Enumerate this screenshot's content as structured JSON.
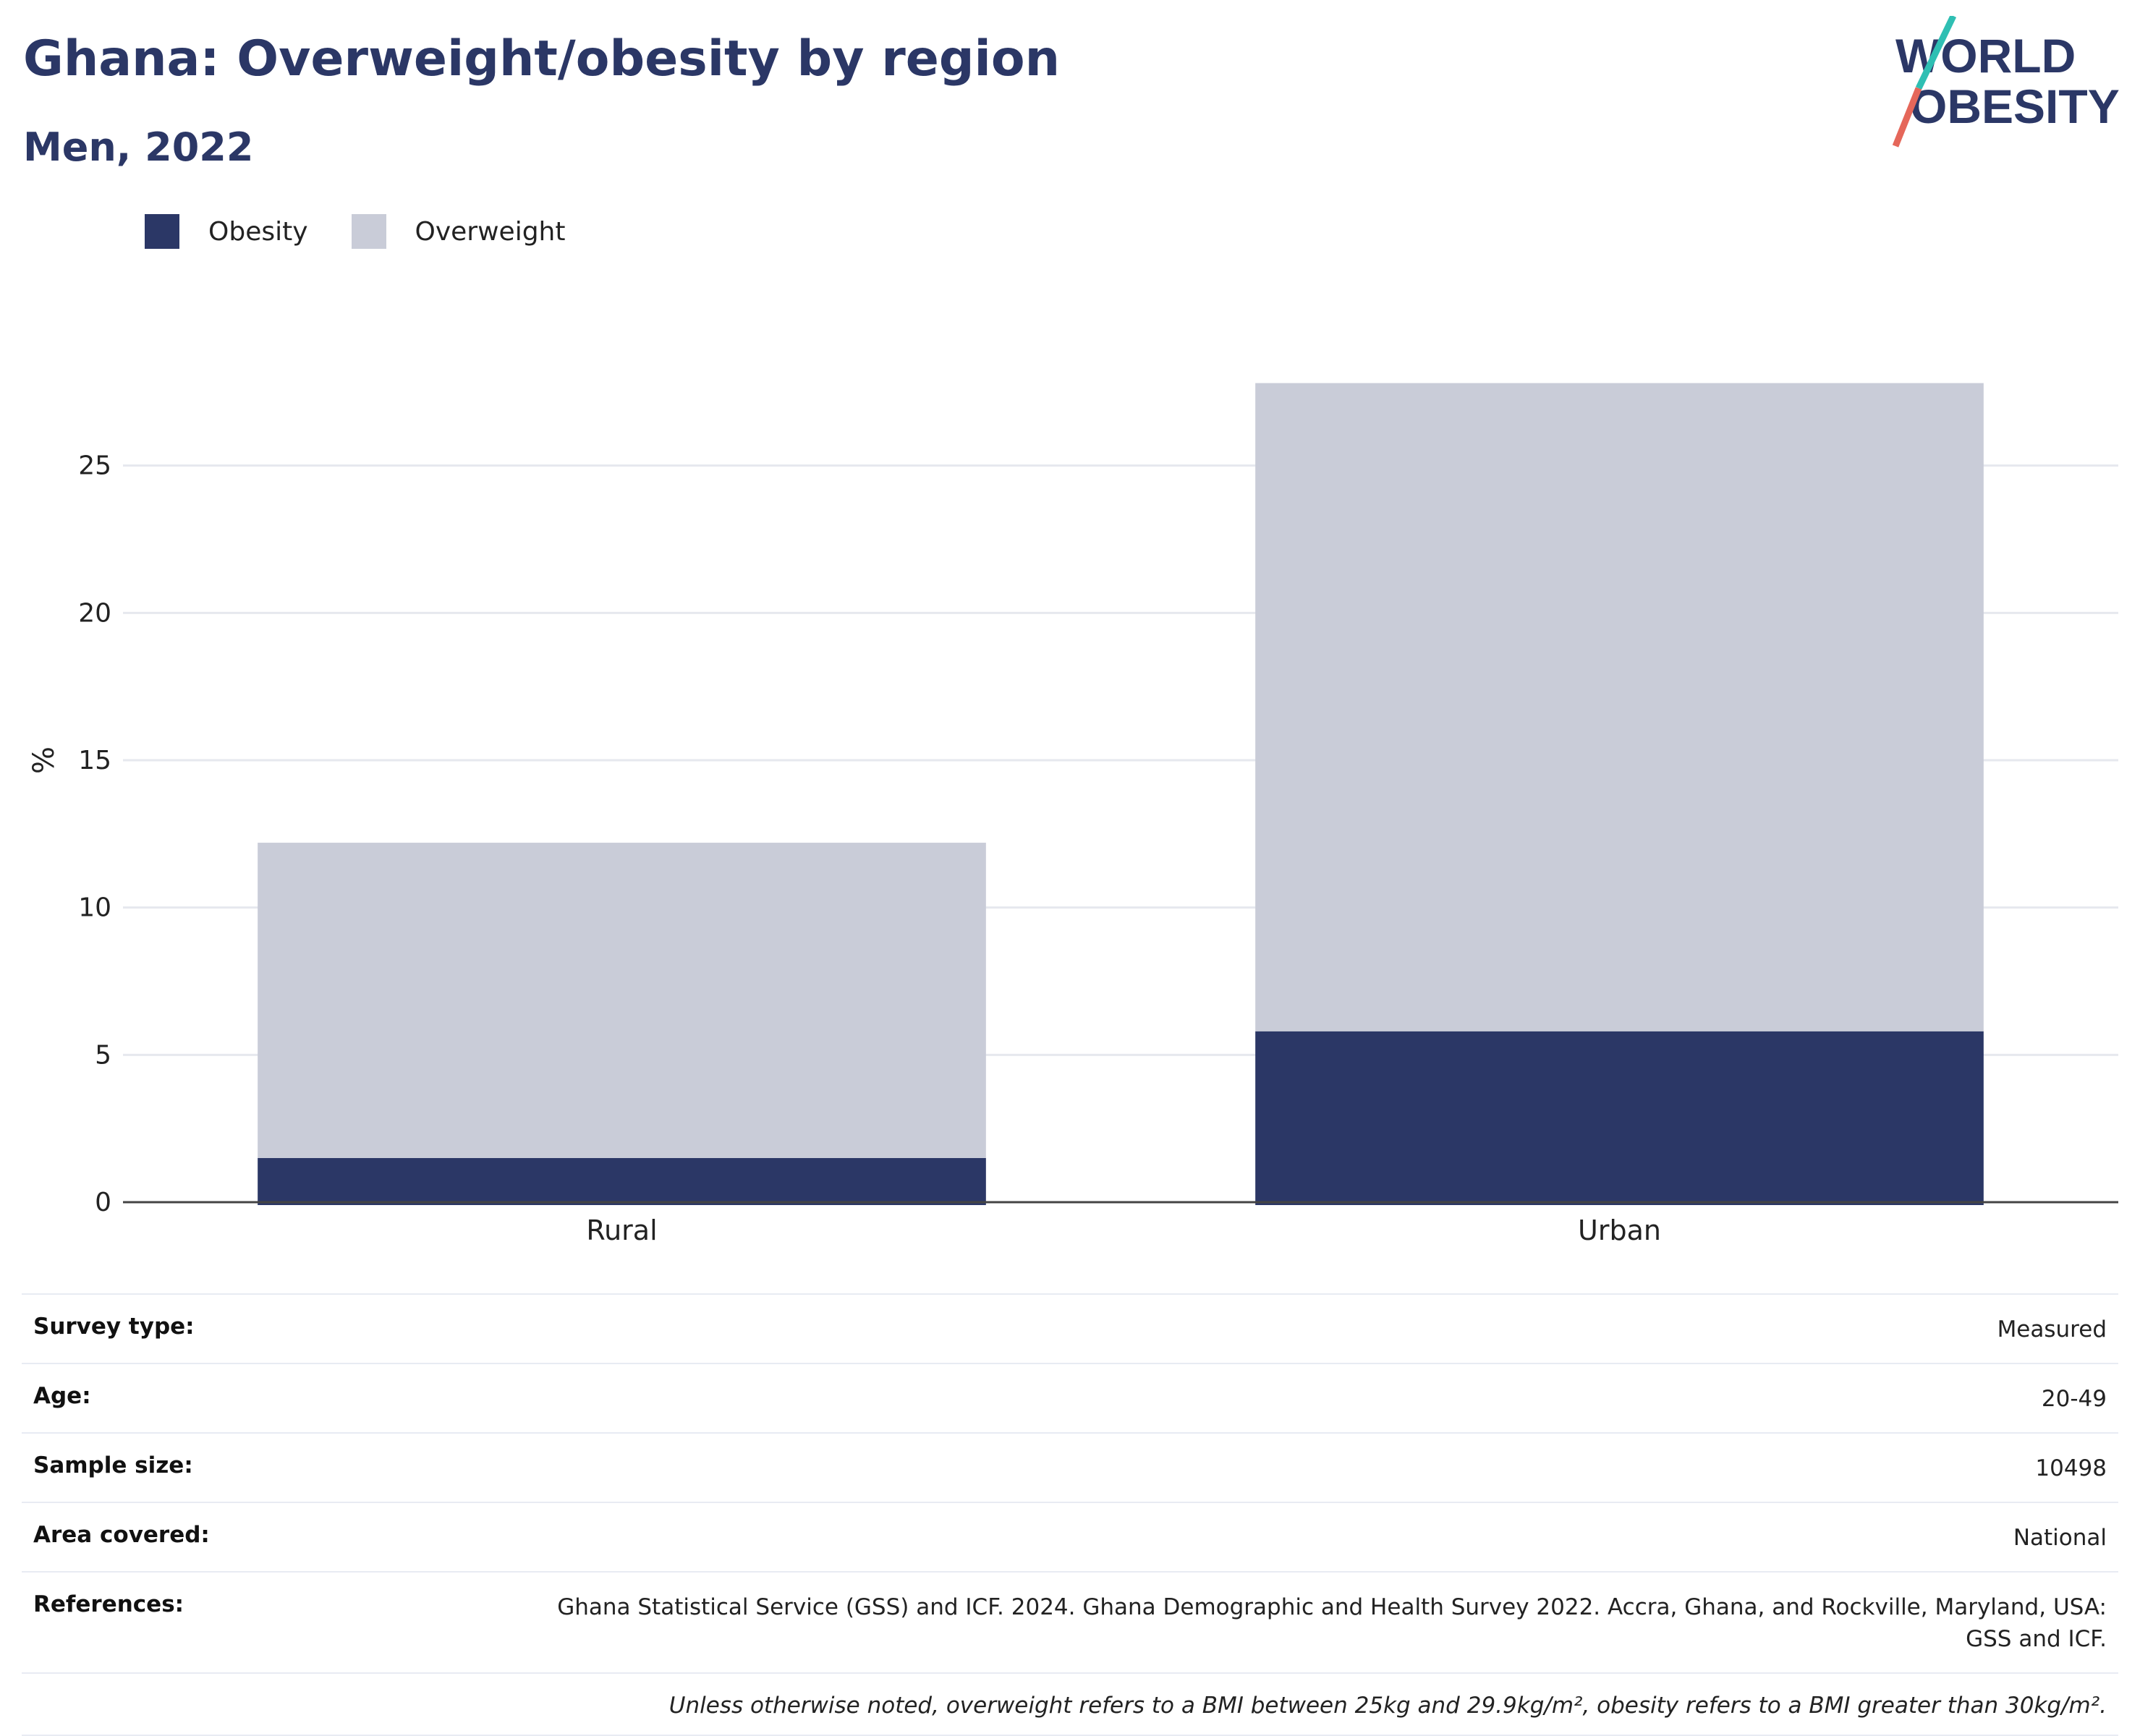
{
  "title": "Ghana: Overweight/obesity by region",
  "subtitle": "Men, 2022",
  "logo": {
    "line1": "WORLD",
    "line2": "OBESITY"
  },
  "legend": [
    {
      "label": "Obesity",
      "color": "#2b3766"
    },
    {
      "label": "Overweight",
      "color": "#c9ccd8"
    }
  ],
  "chart_data": {
    "type": "bar",
    "stacked": true,
    "categories": [
      "Rural",
      "Urban"
    ],
    "series": [
      {
        "name": "Obesity",
        "color": "#2b3766",
        "values": [
          1.5,
          5.8
        ]
      },
      {
        "name": "Overweight",
        "color": "#c9ccd8",
        "values": [
          10.7,
          22.0
        ]
      }
    ],
    "ylabel": "%",
    "ylim": [
      0,
      30
    ],
    "yticks": [
      0,
      5,
      10,
      15,
      20,
      25
    ],
    "grid": true,
    "legend_position": "top-left"
  },
  "meta": [
    {
      "key": "Survey type:",
      "value": "Measured"
    },
    {
      "key": "Age:",
      "value": "20-49"
    },
    {
      "key": "Sample size:",
      "value": "10498"
    },
    {
      "key": "Area covered:",
      "value": "National"
    },
    {
      "key": "References:",
      "value": "Ghana Statistical Service (GSS) and ICF. 2024. Ghana Demographic and Health Survey 2022. Accra, Ghana, and Rockville, Maryland, USA: GSS and ICF."
    }
  ],
  "note": "Unless otherwise noted, overweight refers to a BMI between 25kg and 29.9kg/m², obesity refers to a BMI greater than 30kg/m²."
}
